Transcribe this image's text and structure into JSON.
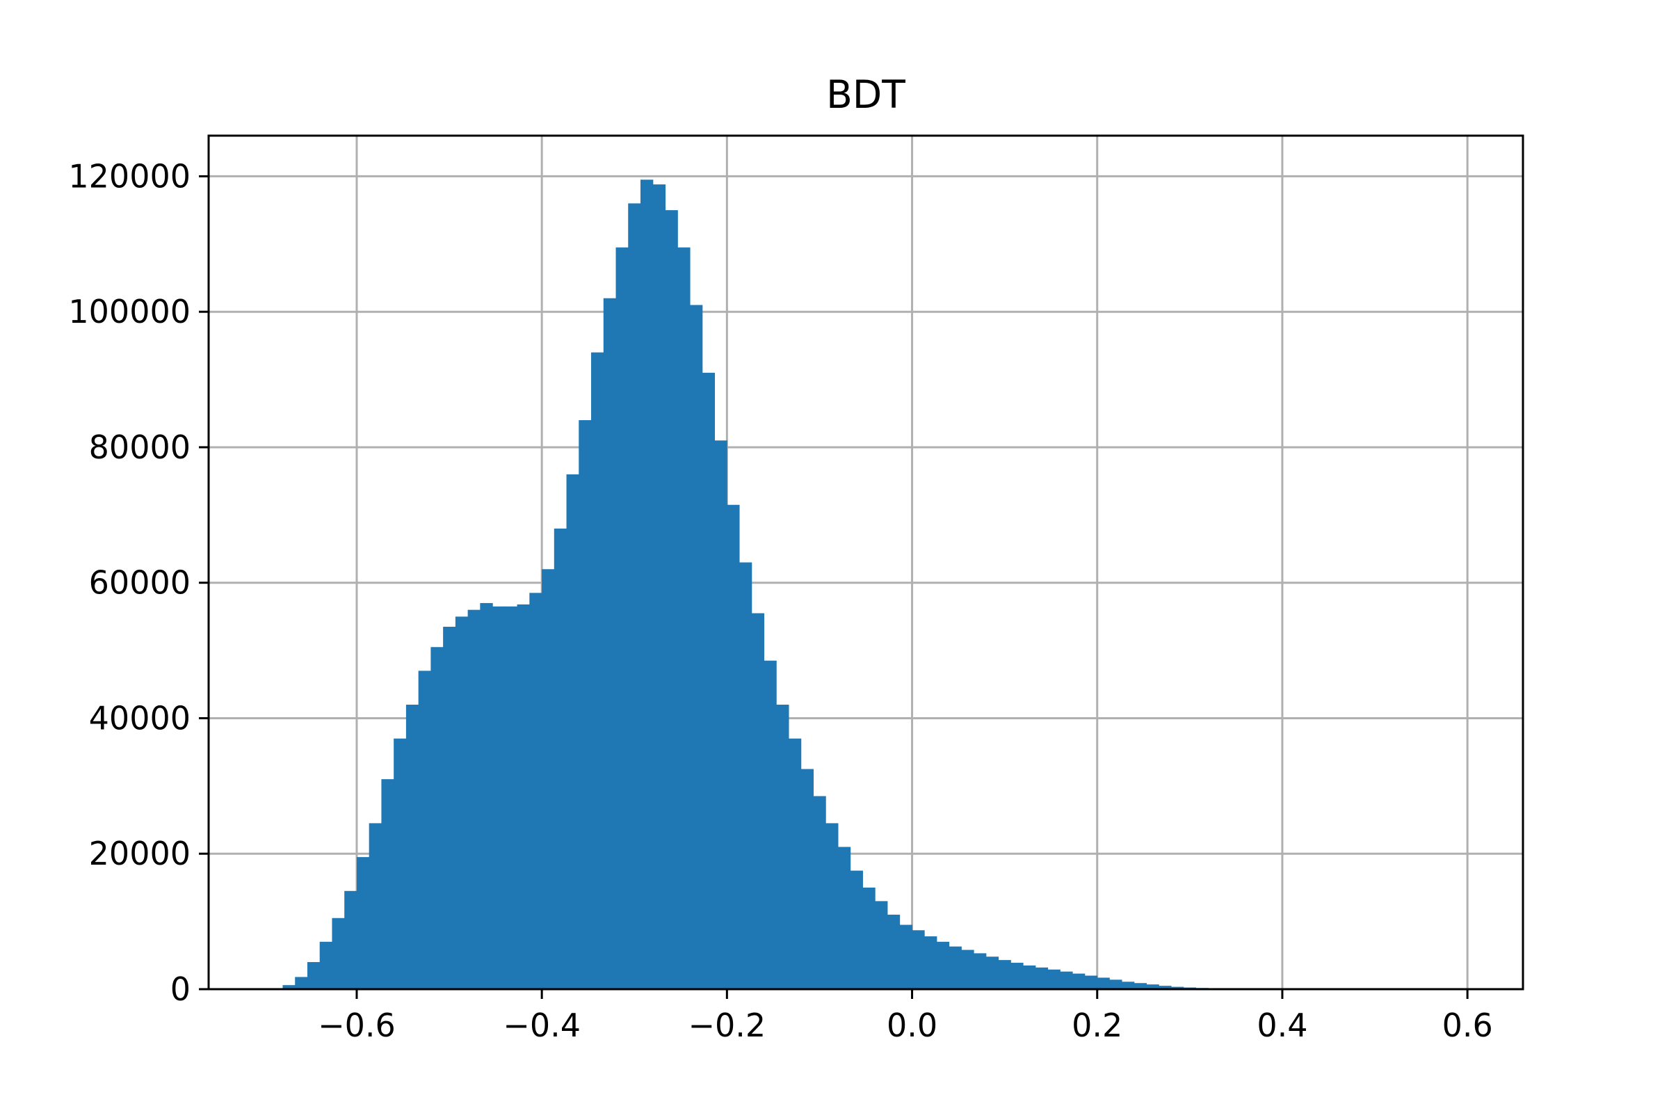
{
  "chart_data": {
    "type": "bar",
    "title": "BDT",
    "xlabel": "",
    "ylabel": "",
    "grid": true,
    "color": "#1f77b4",
    "xlim": [
      -0.76,
      0.66
    ],
    "ylim": [
      0,
      126000
    ],
    "x_ticks": [
      {
        "value": -0.6,
        "label": "−0.6"
      },
      {
        "value": -0.4,
        "label": "−0.4"
      },
      {
        "value": -0.2,
        "label": "−0.2"
      },
      {
        "value": 0.0,
        "label": "0.0"
      },
      {
        "value": 0.2,
        "label": "0.2"
      },
      {
        "value": 0.4,
        "label": "0.4"
      },
      {
        "value": 0.6,
        "label": "0.6"
      }
    ],
    "y_ticks": [
      {
        "value": 0,
        "label": "0"
      },
      {
        "value": 20000,
        "label": "20000"
      },
      {
        "value": 40000,
        "label": "40000"
      },
      {
        "value": 60000,
        "label": "60000"
      },
      {
        "value": 80000,
        "label": "80000"
      },
      {
        "value": 100000,
        "label": "100000"
      },
      {
        "value": 120000,
        "label": "120000"
      }
    ],
    "bin_start": -0.68,
    "bin_width": 0.01333,
    "values": [
      600,
      1800,
      4000,
      7000,
      10500,
      14500,
      19500,
      24500,
      31000,
      37000,
      42000,
      47000,
      50500,
      53500,
      55000,
      56000,
      57000,
      56500,
      56500,
      56800,
      58500,
      62000,
      68000,
      76000,
      84000,
      94000,
      102000,
      109500,
      116000,
      119500,
      118800,
      115000,
      109500,
      101000,
      91000,
      81000,
      71500,
      63000,
      55500,
      48500,
      42000,
      37000,
      32500,
      28500,
      24500,
      21000,
      17500,
      15000,
      13000,
      11000,
      9500,
      8700,
      7800,
      7000,
      6300,
      5800,
      5300,
      4800,
      4300,
      3900,
      3500,
      3200,
      2900,
      2600,
      2300,
      2000,
      1700,
      1400,
      1100,
      900,
      700,
      500,
      350,
      250,
      180,
      120,
      90,
      60,
      40,
      30,
      20,
      15,
      10,
      8,
      5,
      4,
      3,
      2,
      2,
      1,
      1,
      1,
      0,
      0,
      0,
      0,
      0,
      0,
      0,
      0
    ]
  }
}
